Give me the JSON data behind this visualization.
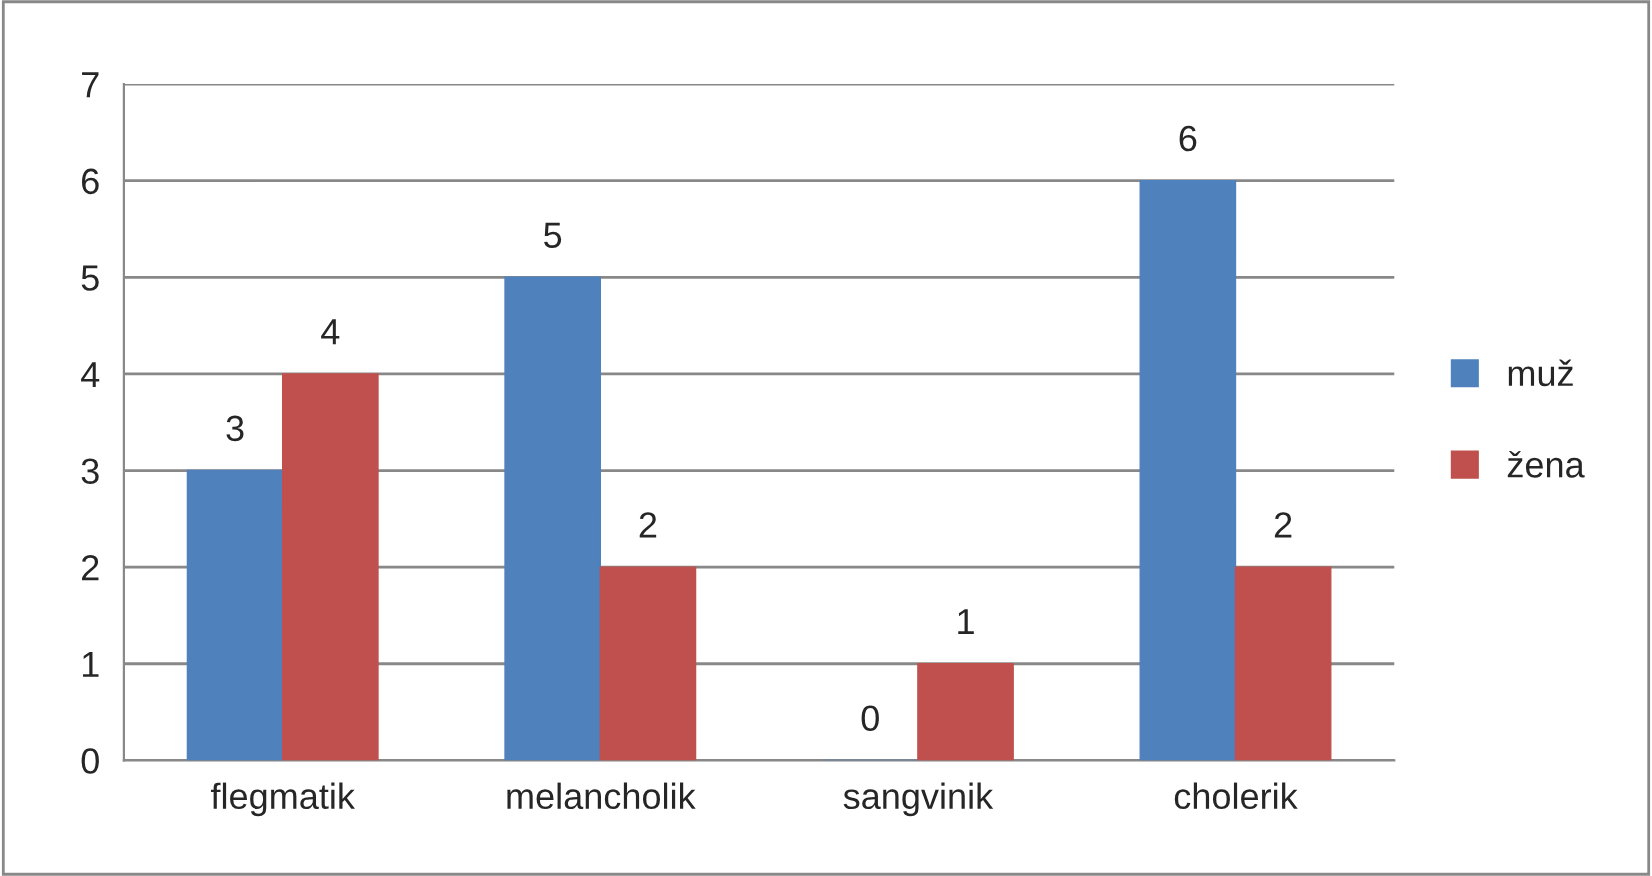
{
  "chart_data": {
    "type": "bar",
    "categories": [
      "flegmatik",
      "melancholik",
      "sangvinik",
      "cholerik"
    ],
    "series": [
      {
        "name": "muž",
        "color": "#4f81bd",
        "values": [
          3,
          5,
          0,
          6
        ]
      },
      {
        "name": "žena",
        "color": "#c0504d",
        "values": [
          4,
          2,
          1,
          2
        ]
      }
    ],
    "ylim": [
      0,
      7
    ],
    "yticks": [
      0,
      1,
      2,
      3,
      4,
      5,
      6,
      7
    ],
    "grid": "y",
    "legend": "right",
    "data_labels": true
  }
}
